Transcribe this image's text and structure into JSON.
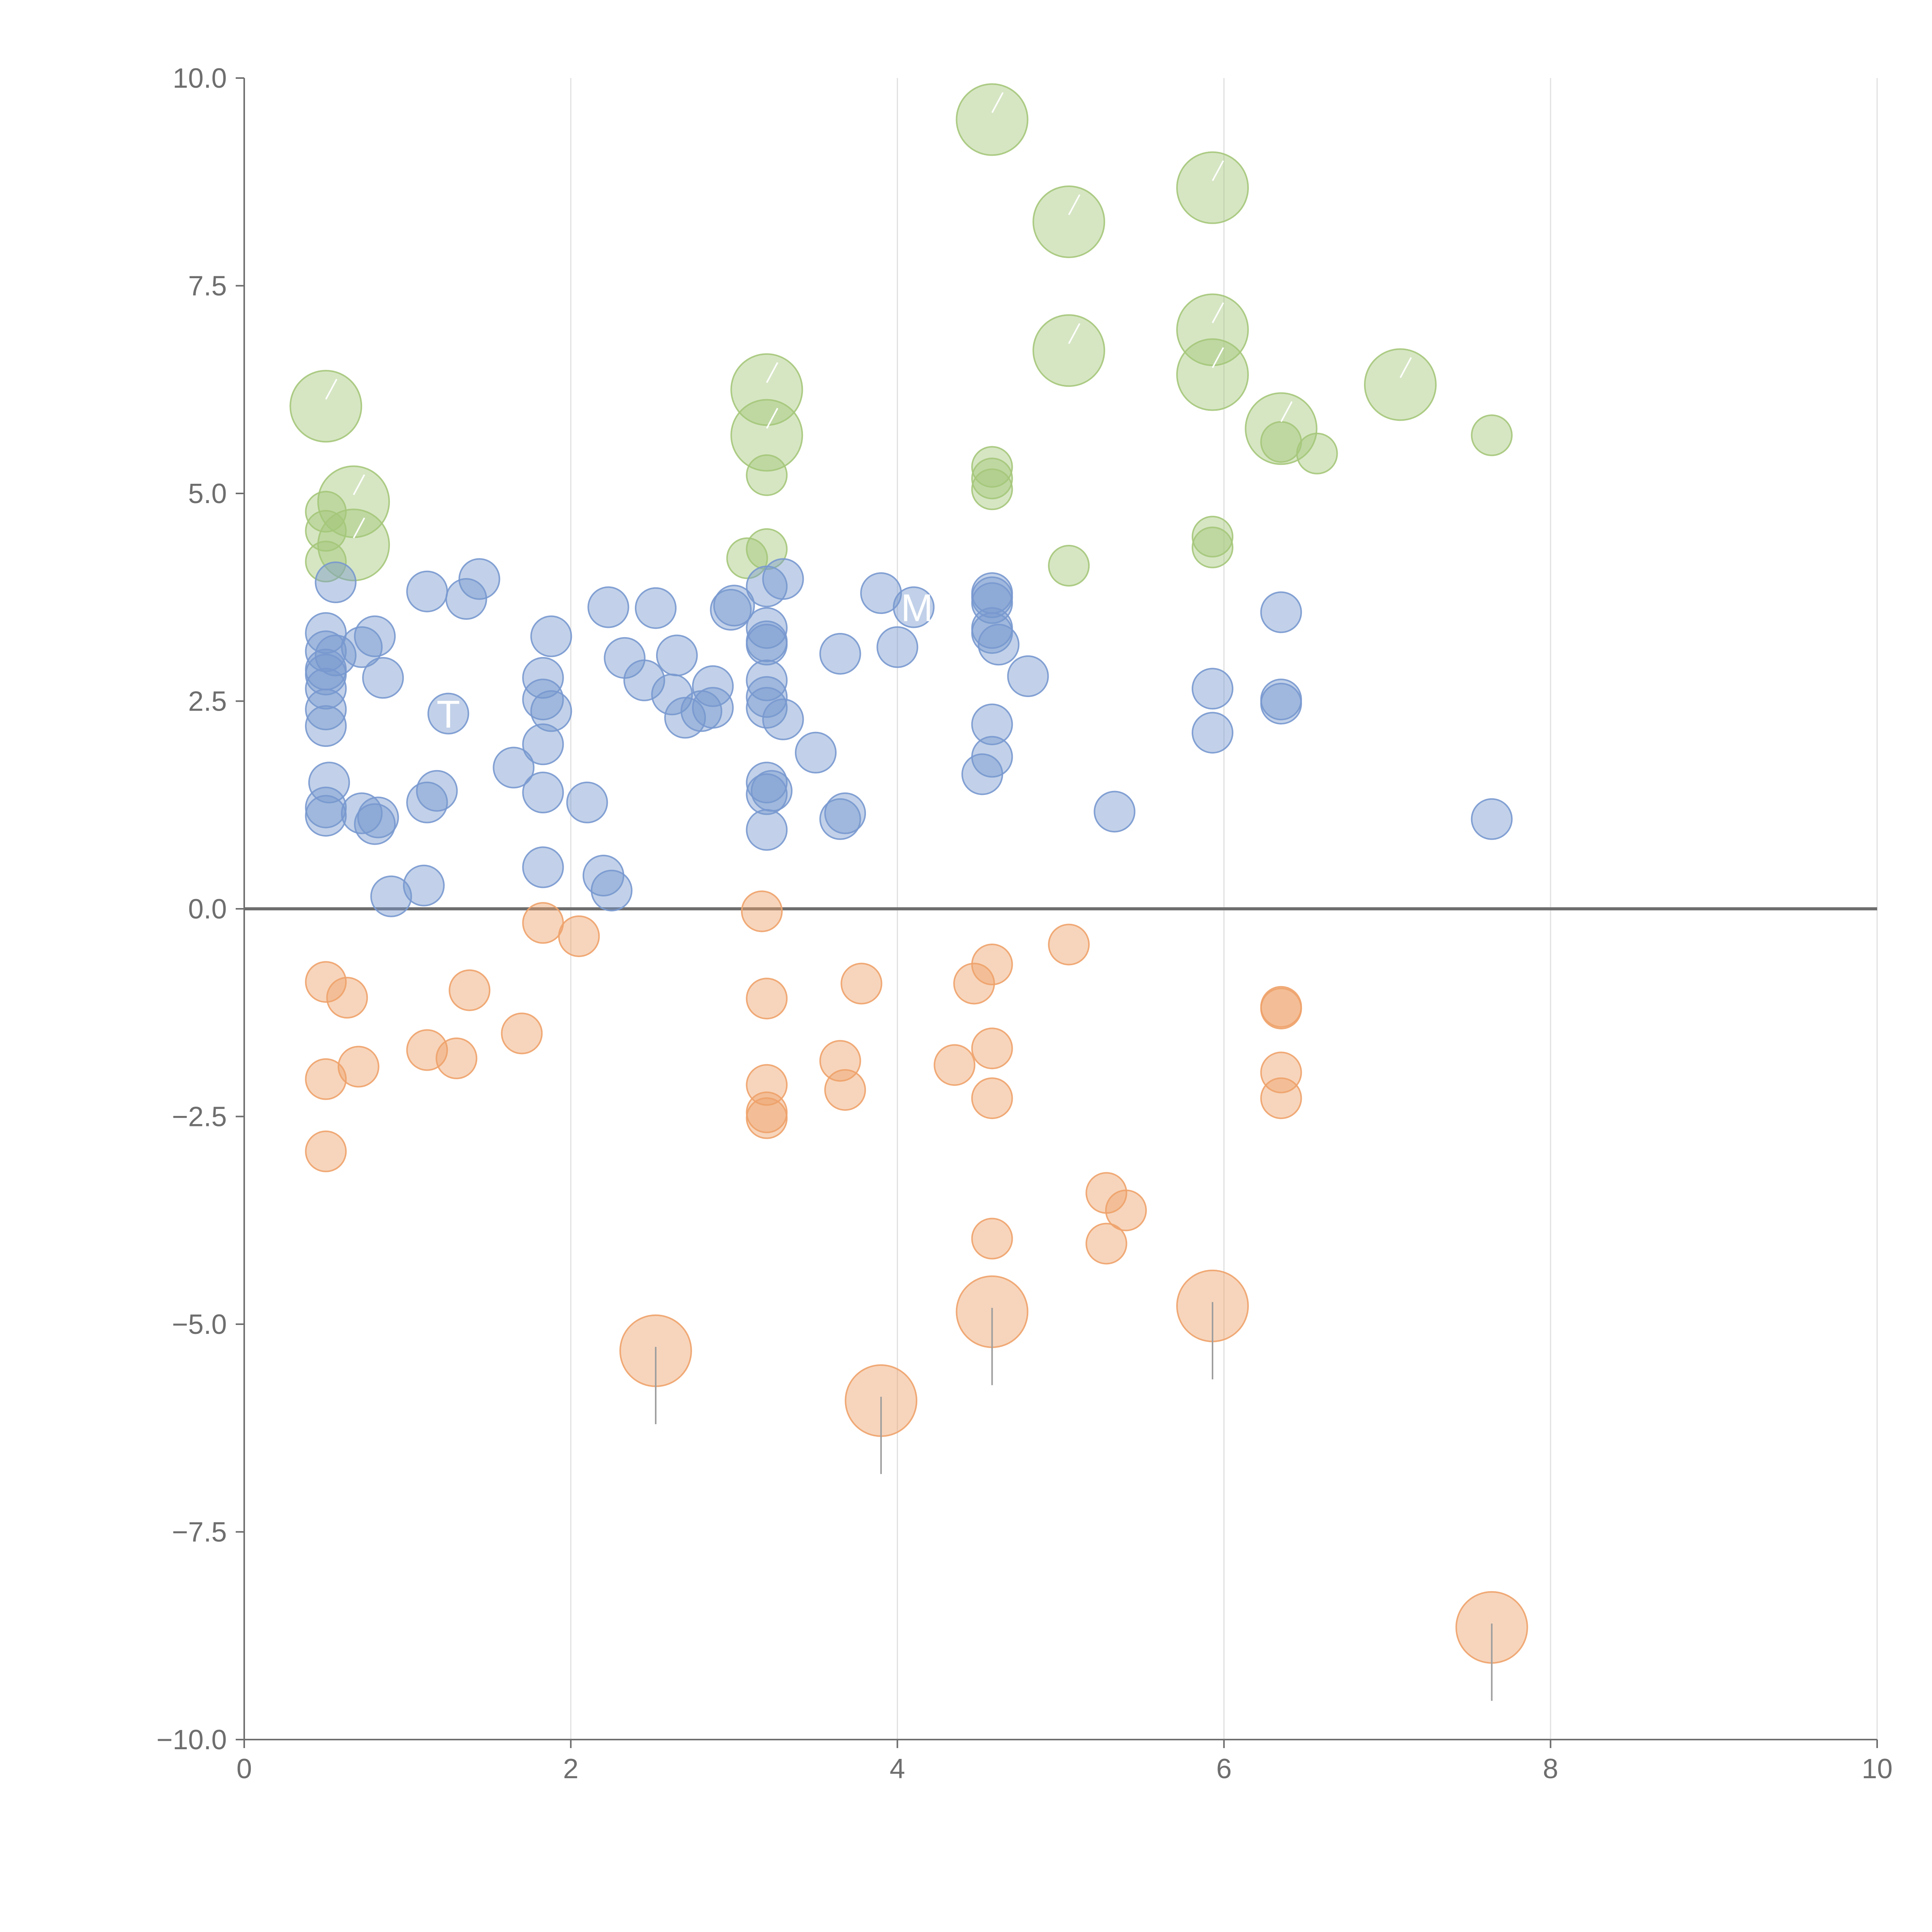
{
  "chart_data": {
    "type": "scatter",
    "title": "",
    "xlabel": "",
    "ylabel": "",
    "xlim": [
      0,
      10
    ],
    "ylim": [
      -10,
      10
    ],
    "x_ticks": [
      0,
      2,
      4,
      6,
      8,
      10
    ],
    "x_tick_labels": [
      "0",
      "2",
      "4",
      "6",
      "8",
      "10"
    ],
    "y_ticks": [
      -10,
      -7.5,
      -5,
      -2.5,
      0,
      2.5,
      5,
      7.5,
      10
    ],
    "y_tick_labels": [
      "−10.0",
      "−7.5",
      "−5.0",
      "−2.5",
      "0.0",
      "2.5",
      "5.0",
      "7.5",
      "10.0"
    ],
    "grid": "vertical",
    "zero_line": true,
    "colors": {
      "green": "#a5c77a",
      "blue": "#7898cf",
      "orange": "#eea26a",
      "axis": "#6e6e6e",
      "grid": "#e0e0e0"
    },
    "annotations": [
      "T",
      "M"
    ],
    "series": [
      {
        "name": "green",
        "color": "#a5c77a",
        "points": [
          [
            4.58,
            9.5,
            3
          ],
          [
            5.93,
            8.68,
            3
          ],
          [
            5.05,
            8.27,
            3
          ],
          [
            5.93,
            6.97,
            3
          ],
          [
            5.05,
            6.72,
            3
          ],
          [
            5.93,
            6.43,
            3
          ],
          [
            7.08,
            6.31,
            3
          ],
          [
            0.5,
            6.05,
            3
          ],
          [
            3.2,
            6.25,
            3
          ],
          [
            3.2,
            5.7,
            3
          ],
          [
            6.35,
            5.78,
            3
          ],
          [
            6.35,
            5.62,
            1
          ],
          [
            6.57,
            5.48,
            1
          ],
          [
            7.64,
            5.7,
            1
          ],
          [
            0.67,
            4.9,
            3
          ],
          [
            0.5,
            4.78,
            1
          ],
          [
            0.5,
            4.55,
            1
          ],
          [
            0.67,
            4.38,
            3
          ],
          [
            0.5,
            4.18,
            1
          ],
          [
            4.58,
            5.32,
            1
          ],
          [
            4.58,
            5.18,
            1
          ],
          [
            4.58,
            5.05,
            1
          ],
          [
            3.2,
            5.22,
            1
          ],
          [
            3.2,
            4.33,
            1
          ],
          [
            3.08,
            4.22,
            1
          ],
          [
            5.93,
            4.48,
            1
          ],
          [
            5.93,
            4.35,
            1
          ],
          [
            5.05,
            4.13,
            1
          ]
        ]
      },
      {
        "name": "blue",
        "color": "#7898cf",
        "points": [
          [
            0.56,
            3.93,
            1
          ],
          [
            1.12,
            3.82,
            1
          ],
          [
            1.44,
            3.97,
            1
          ],
          [
            1.36,
            3.73,
            1
          ],
          [
            0.5,
            3.32,
            1
          ],
          [
            0.5,
            3.1,
            1
          ],
          [
            0.56,
            3.05,
            1
          ],
          [
            0.72,
            3.15,
            1
          ],
          [
            0.8,
            3.28,
            1
          ],
          [
            0.5,
            2.88,
            1
          ],
          [
            0.5,
            2.82,
            1
          ],
          [
            0.5,
            2.65,
            1
          ],
          [
            0.5,
            2.4,
            1
          ],
          [
            0.5,
            2.2,
            1
          ],
          [
            0.85,
            2.78,
            1
          ],
          [
            1.25,
            2.35,
            1
          ],
          [
            1.88,
            3.28,
            1
          ],
          [
            1.83,
            2.78,
            1
          ],
          [
            1.83,
            2.52,
            1
          ],
          [
            1.88,
            2.38,
            1
          ],
          [
            1.83,
            1.98,
            1
          ],
          [
            1.65,
            1.7,
            1
          ],
          [
            1.83,
            1.4,
            1
          ],
          [
            2.1,
            1.28,
            1
          ],
          [
            0.52,
            1.52,
            1
          ],
          [
            0.5,
            1.22,
            1
          ],
          [
            0.5,
            1.12,
            1
          ],
          [
            0.72,
            1.15,
            1
          ],
          [
            0.82,
            1.1,
            1
          ],
          [
            0.8,
            1.02,
            1
          ],
          [
            1.12,
            1.28,
            1
          ],
          [
            1.18,
            1.42,
            1
          ],
          [
            0.9,
            0.15,
            1
          ],
          [
            1.1,
            0.28,
            1
          ],
          [
            1.83,
            0.5,
            1
          ],
          [
            2.2,
            0.4,
            1
          ],
          [
            2.25,
            0.22,
            1
          ],
          [
            2.23,
            3.63,
            1
          ],
          [
            2.52,
            3.62,
            1
          ],
          [
            2.33,
            3.02,
            1
          ],
          [
            2.45,
            2.75,
            1
          ],
          [
            2.65,
            3.05,
            1
          ],
          [
            2.62,
            2.58,
            1
          ],
          [
            2.7,
            2.3,
            1
          ],
          [
            2.8,
            2.38,
            1
          ],
          [
            2.87,
            2.68,
            1
          ],
          [
            2.87,
            2.42,
            1
          ],
          [
            2.98,
            3.6,
            1
          ],
          [
            3.0,
            3.65,
            1
          ],
          [
            3.2,
            3.88,
            1
          ],
          [
            3.3,
            3.97,
            1
          ],
          [
            3.2,
            3.38,
            1
          ],
          [
            3.2,
            3.22,
            1
          ],
          [
            3.2,
            3.18,
            1
          ],
          [
            3.2,
            2.75,
            1
          ],
          [
            3.2,
            2.55,
            1
          ],
          [
            3.2,
            2.42,
            1
          ],
          [
            3.3,
            2.28,
            1
          ],
          [
            3.5,
            1.88,
            1
          ],
          [
            3.2,
            1.52,
            1
          ],
          [
            3.23,
            1.42,
            1
          ],
          [
            3.2,
            1.38,
            1
          ],
          [
            3.2,
            0.95,
            1
          ],
          [
            3.65,
            1.08,
            1
          ],
          [
            3.68,
            1.15,
            1
          ],
          [
            3.65,
            3.07,
            1
          ],
          [
            3.9,
            3.8,
            1
          ],
          [
            4.0,
            3.15,
            1
          ],
          [
            4.1,
            3.63,
            1
          ],
          [
            4.58,
            3.8,
            1
          ],
          [
            4.58,
            3.75,
            1
          ],
          [
            4.58,
            3.68,
            1
          ],
          [
            4.58,
            3.38,
            1
          ],
          [
            4.58,
            3.32,
            1
          ],
          [
            4.62,
            3.18,
            1
          ],
          [
            4.8,
            2.8,
            1
          ],
          [
            4.58,
            2.22,
            1
          ],
          [
            4.58,
            1.83,
            1
          ],
          [
            4.52,
            1.62,
            1
          ],
          [
            5.33,
            1.17,
            1
          ],
          [
            5.93,
            2.65,
            1
          ],
          [
            5.93,
            2.12,
            1
          ],
          [
            6.35,
            3.57,
            1
          ],
          [
            6.35,
            2.52,
            1
          ],
          [
            6.35,
            2.47,
            1
          ],
          [
            7.64,
            1.08,
            1
          ]
        ]
      },
      {
        "name": "orange",
        "color": "#eea26a",
        "points": [
          [
            3.17,
            -0.03,
            1
          ],
          [
            1.83,
            -0.17,
            1
          ],
          [
            2.05,
            -0.33,
            1
          ],
          [
            0.5,
            -0.88,
            1
          ],
          [
            0.63,
            -1.07,
            1
          ],
          [
            1.38,
            -0.98,
            1
          ],
          [
            1.7,
            -1.5,
            1
          ],
          [
            1.12,
            -1.7,
            1
          ],
          [
            1.3,
            -1.8,
            1
          ],
          [
            0.7,
            -1.9,
            1
          ],
          [
            0.5,
            -2.05,
            1
          ],
          [
            0.5,
            -2.92,
            1
          ],
          [
            3.2,
            -1.08,
            1
          ],
          [
            3.2,
            -2.12,
            1
          ],
          [
            3.2,
            -2.45,
            1
          ],
          [
            3.2,
            -2.52,
            1
          ],
          [
            3.65,
            -1.83,
            1
          ],
          [
            3.68,
            -2.18,
            1
          ],
          [
            3.78,
            -0.9,
            1
          ],
          [
            4.35,
            -1.88,
            1
          ],
          [
            4.47,
            -0.9,
            1
          ],
          [
            4.58,
            -0.67,
            1
          ],
          [
            4.58,
            -1.68,
            1
          ],
          [
            4.58,
            -2.28,
            1
          ],
          [
            5.05,
            -0.43,
            1
          ],
          [
            6.35,
            -1.18,
            1
          ],
          [
            6.35,
            -1.2,
            1
          ],
          [
            6.35,
            -1.97,
            1
          ],
          [
            6.35,
            -2.28,
            1
          ],
          [
            5.28,
            -3.42,
            1
          ],
          [
            5.4,
            -3.63,
            1
          ],
          [
            5.28,
            -4.03,
            1
          ],
          [
            4.58,
            -3.97,
            1
          ],
          [
            2.52,
            -5.32,
            3
          ],
          [
            3.9,
            -5.92,
            3
          ],
          [
            4.58,
            -4.85,
            3
          ],
          [
            5.93,
            -4.78,
            3
          ],
          [
            7.64,
            -8.65,
            3
          ]
        ]
      }
    ]
  }
}
